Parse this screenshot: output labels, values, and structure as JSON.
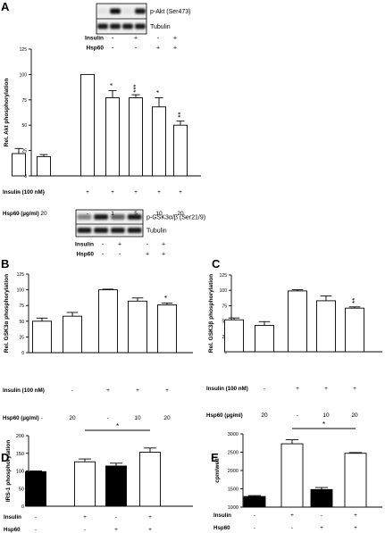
{
  "panels": [
    {
      "letter": "A"
    },
    {
      "letter": "B"
    },
    {
      "letter": "C"
    },
    {
      "letter": "D"
    },
    {
      "letter": "E"
    }
  ],
  "blots": [
    {
      "top_label": "p-Akt (Ser473)",
      "bottom_label": "Tubulin",
      "row_labels": [
        "Insulin",
        "Hsp60"
      ],
      "rows": [
        [
          "-",
          "+",
          "-",
          "+"
        ],
        [
          "-",
          "-",
          "+",
          "+"
        ]
      ]
    },
    {
      "top_label": "p-GSK3α/β (Ser21/9)",
      "bottom_label": "Tubulin",
      "row_labels": [
        "Insulin",
        "Hsp60"
      ],
      "rows": [
        [
          "-",
          "+",
          "-",
          "+"
        ],
        [
          "-",
          "-",
          "+",
          "+"
        ]
      ]
    }
  ],
  "chart_data": [
    {
      "id": "A",
      "type": "bar",
      "ylabel": "Rel. Akt phosphorylation",
      "ylim": [
        0,
        125
      ],
      "yticks": [
        "0",
        "25",
        "50",
        "75",
        "100",
        "125"
      ],
      "values": [
        22,
        19,
        100,
        77,
        77,
        68,
        50
      ],
      "errors": [
        5,
        2,
        0,
        7,
        3,
        9,
        4
      ],
      "significance": [
        "",
        "",
        "",
        "*",
        "***",
        "*",
        "**"
      ],
      "fills": [
        "white",
        "white",
        "white",
        "white",
        "white",
        "white",
        "white"
      ],
      "row_labels": [
        "Insulin (100 nM)",
        "Hsp60 (µg/ml)"
      ],
      "rows": [
        [
          "-",
          "-",
          "+",
          "+",
          "+",
          "+",
          "+"
        ],
        [
          "-",
          "20",
          "-",
          "1",
          "5",
          "10",
          "20"
        ]
      ]
    },
    {
      "id": "B",
      "type": "bar",
      "ylabel": "Rel. GSK3α phosphorylation",
      "ylim": [
        0,
        125
      ],
      "yticks": [
        "0",
        "25",
        "50",
        "75",
        "100",
        "125"
      ],
      "values": [
        50,
        58,
        100,
        82,
        76
      ],
      "errors": [
        5,
        6,
        1,
        5,
        3
      ],
      "significance": [
        "",
        "",
        "",
        "",
        "*"
      ],
      "fills": [
        "white",
        "white",
        "white",
        "white",
        "white"
      ],
      "row_labels": [
        "Insulin (100 nM)",
        "Hsp60 (µg/ml)"
      ],
      "rows": [
        [
          "-",
          "-",
          "+",
          "+",
          "+"
        ],
        [
          "-",
          "20",
          "-",
          "10",
          "20"
        ]
      ]
    },
    {
      "id": "C",
      "type": "bar",
      "ylabel": "Rel. GSK3β phosphorylation",
      "ylim": [
        0,
        125
      ],
      "yticks": [
        "0",
        "25",
        "50",
        "75",
        "100",
        "125"
      ],
      "values": [
        52,
        43,
        99,
        83,
        71
      ],
      "errors": [
        3,
        6,
        2,
        8,
        2
      ],
      "significance": [
        "",
        "",
        "",
        "",
        "**"
      ],
      "fills": [
        "white",
        "white",
        "white",
        "white",
        "white"
      ],
      "row_labels": [
        "Insulin (100 nM)",
        "Hsp60 (µg/ml)"
      ],
      "rows": [
        [
          "-",
          "-",
          "+",
          "+",
          "+"
        ],
        [
          "-",
          "20",
          "-",
          "10",
          "20"
        ]
      ]
    },
    {
      "id": "D",
      "type": "bar",
      "ylabel": "IRS-1 phosphorylation",
      "ylim": [
        0,
        200
      ],
      "yticks": [
        "0",
        "50",
        "100",
        "150",
        "200"
      ],
      "values": [
        98,
        126,
        114,
        153
      ],
      "errors": [
        2,
        8,
        8,
        12
      ],
      "fills": [
        "black",
        "white",
        "black",
        "white"
      ],
      "bracket": {
        "from": 1,
        "to": 3,
        "label": "*"
      },
      "row_labels": [
        "Insulin",
        "Hsp60"
      ],
      "rows": [
        [
          "-",
          "+",
          "-",
          "+"
        ],
        [
          "-",
          "-",
          "+",
          "+"
        ]
      ]
    },
    {
      "id": "E",
      "type": "bar",
      "ylabel": "cpm/well",
      "ylim": [
        1000,
        3000
      ],
      "yticks": [
        "1000",
        "1500",
        "2000",
        "2500",
        "3000"
      ],
      "values": [
        1290,
        2730,
        1480,
        2470
      ],
      "errors": [
        25,
        110,
        55,
        20
      ],
      "fills": [
        "black",
        "white",
        "black",
        "white"
      ],
      "bracket": {
        "from": 1,
        "to": 3,
        "label": "*"
      },
      "row_labels": [
        "Insulin",
        "Hsp60"
      ],
      "rows": [
        [
          "-",
          "+",
          "-",
          "+"
        ],
        [
          "-",
          "-",
          "+",
          "+"
        ]
      ]
    }
  ]
}
